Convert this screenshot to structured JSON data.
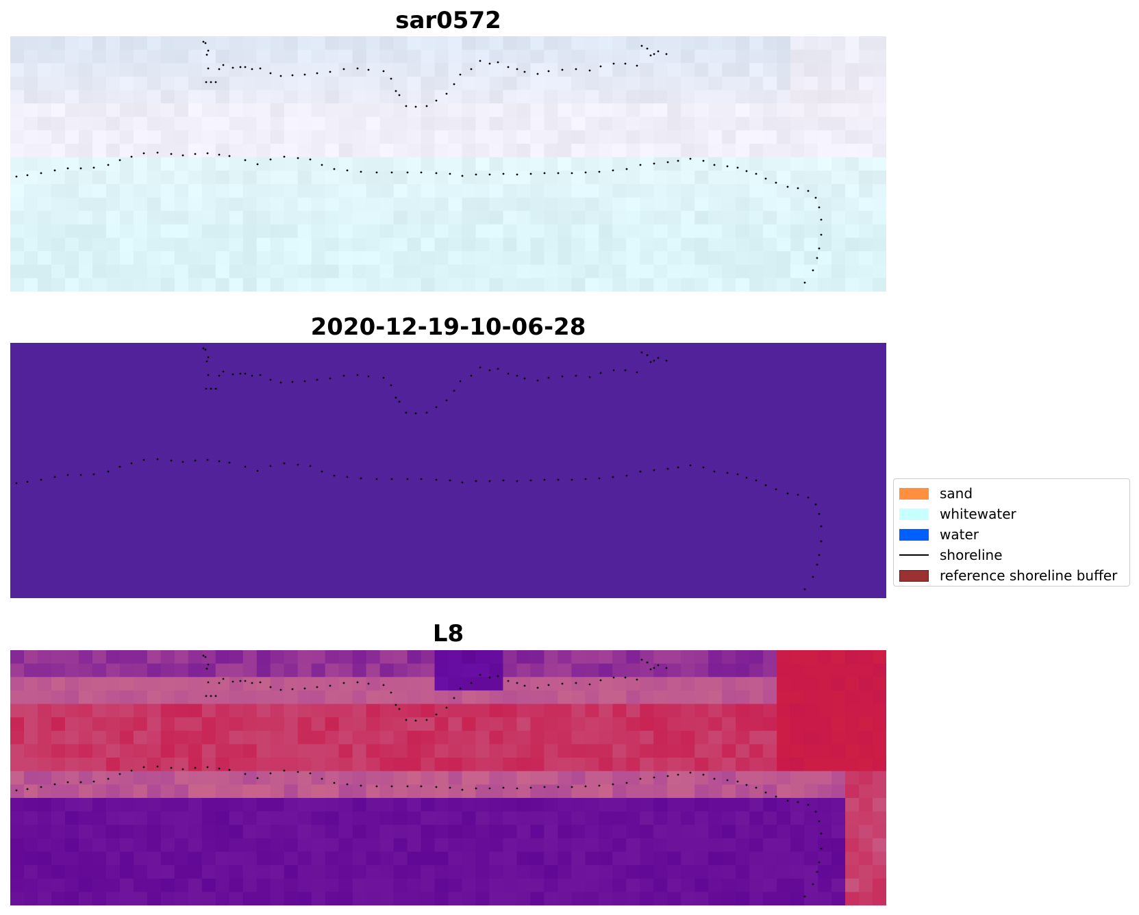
{
  "panels": [
    {
      "title": "sar0572",
      "kind": "rgb"
    },
    {
      "title": "2020-12-19-10-06-28",
      "kind": "classified"
    },
    {
      "title": "L8",
      "kind": "index"
    }
  ],
  "colors": {
    "classified_fill": "#52229a",
    "shoreline_points": "#000000"
  },
  "legend": {
    "items": [
      {
        "label": "sand",
        "type": "patch",
        "color": "#ff9040",
        "edge": "none"
      },
      {
        "label": "whitewater",
        "type": "patch",
        "color": "#c8ffff",
        "edge": "none"
      },
      {
        "label": "water",
        "type": "patch",
        "color": "#0060ff",
        "edge": "none"
      },
      {
        "label": "shoreline",
        "type": "line",
        "color": "#000000"
      },
      {
        "label": "reference shoreline buffer",
        "type": "patch",
        "color": "#9b3232",
        "edge": "#6b1a1a"
      }
    ]
  }
}
